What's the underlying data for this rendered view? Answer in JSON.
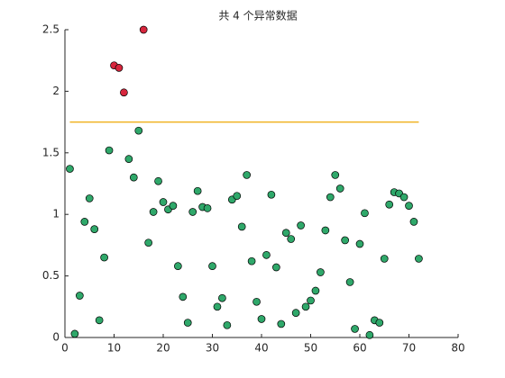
{
  "chart_data": {
    "type": "scatter",
    "title": "共 4 个异常数据",
    "xlim": [
      0,
      80
    ],
    "xticks": [
      0,
      10,
      20,
      30,
      40,
      50,
      60,
      70,
      80
    ],
    "ylim": [
      0,
      2.5
    ],
    "yticks": [
      0,
      0.5,
      1,
      1.5,
      2,
      2.5
    ],
    "series": [
      {
        "color": "#2fa86a",
        "x": [
          1,
          2,
          3,
          4,
          5,
          6,
          7,
          8,
          9,
          13,
          14,
          15,
          17,
          18,
          19,
          20,
          21,
          22,
          23,
          24,
          25,
          26,
          27,
          28,
          29,
          30,
          31,
          32,
          33,
          34,
          35,
          36,
          37,
          38,
          39,
          40,
          41,
          42,
          43,
          44,
          45,
          46,
          47,
          48,
          49,
          50,
          51,
          52,
          53,
          54,
          55,
          56,
          57,
          58,
          59,
          60,
          61,
          62,
          63,
          64,
          65,
          66,
          67,
          68,
          69,
          70,
          71,
          72
        ],
        "values": [
          1.37,
          0.03,
          0.34,
          0.94,
          1.13,
          0.88,
          0.14,
          0.65,
          1.52,
          1.45,
          1.3,
          1.68,
          0.77,
          1.02,
          1.27,
          1.1,
          1.04,
          1.07,
          0.58,
          0.33,
          0.12,
          1.02,
          1.19,
          1.06,
          1.05,
          0.58,
          0.25,
          0.32,
          0.1,
          1.12,
          1.15,
          0.9,
          1.32,
          0.62,
          0.29,
          0.15,
          0.67,
          1.16,
          0.57,
          0.11,
          0.85,
          0.8,
          0.2,
          0.91,
          0.25,
          0.3,
          0.38,
          0.53,
          0.87,
          1.14,
          1.32,
          1.21,
          0.79,
          0.45,
          0.07,
          0.76,
          1.01,
          0.02,
          0.14,
          0.12,
          0.64,
          1.08,
          1.18,
          1.17,
          1.14,
          1.07,
          0.94,
          0.64
        ]
      },
      {
        "color": "#d7263d",
        "x": [
          10,
          11,
          12,
          16
        ],
        "values": [
          2.21,
          2.19,
          1.99,
          2.5
        ]
      }
    ],
    "lines": [
      {
        "color": "#f0b323",
        "x": [
          1,
          72
        ],
        "values": [
          1.75,
          1.75
        ]
      }
    ]
  }
}
